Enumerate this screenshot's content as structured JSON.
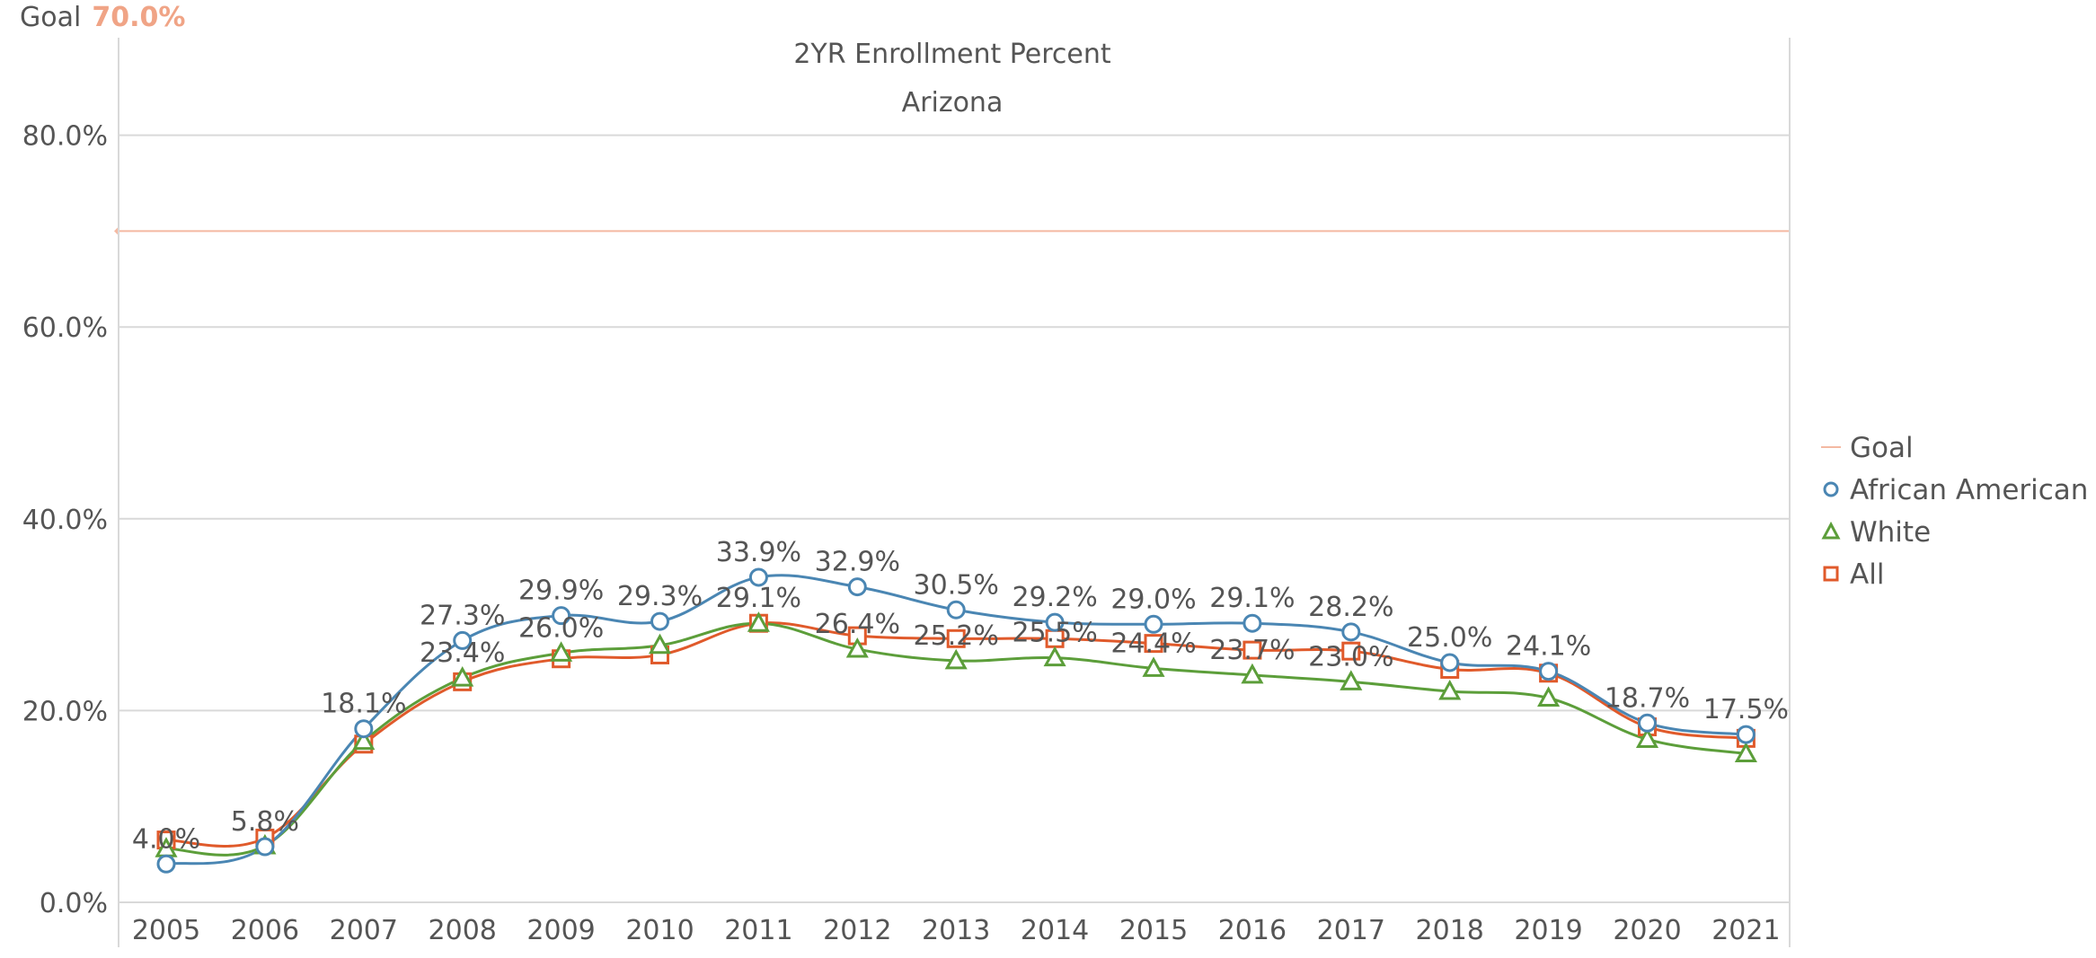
{
  "goal_header": {
    "label": "Goal",
    "value": "70.0%"
  },
  "chart_data": {
    "type": "line",
    "title": "2YR Enrollment Percent",
    "subtitle": "Arizona",
    "categories": [
      "2005",
      "2006",
      "2007",
      "2008",
      "2009",
      "2010",
      "2011",
      "2012",
      "2013",
      "2014",
      "2015",
      "2016",
      "2017",
      "2018",
      "2019",
      "2020",
      "2021"
    ],
    "ylim": [
      0,
      90
    ],
    "yticks": [
      0,
      20,
      40,
      60,
      80
    ],
    "ytick_labels": [
      "0.0%",
      "20.0%",
      "40.0%",
      "60.0%",
      "80.0%"
    ],
    "grid": true,
    "legend_position": "right",
    "goal": {
      "name": "Goal",
      "value": 70.0,
      "color": "#f4b9a2"
    },
    "series": [
      {
        "name": "African American",
        "marker": "circle",
        "color": "#4a86b3",
        "values": [
          4.0,
          5.8,
          18.1,
          27.3,
          29.9,
          29.3,
          33.9,
          32.9,
          30.5,
          29.2,
          29.0,
          29.1,
          28.2,
          25.0,
          24.1,
          18.7,
          17.5
        ],
        "labels": [
          "4.0%",
          "5.8%",
          "18.1%",
          "27.3%",
          "29.9%",
          "29.3%",
          "33.9%",
          "32.9%",
          "30.5%",
          "29.2%",
          "29.0%",
          "29.1%",
          "28.2%",
          "25.0%",
          "24.1%",
          "18.7%",
          "17.5%"
        ]
      },
      {
        "name": "White",
        "marker": "triangle",
        "color": "#5c9e3a",
        "values": [
          5.6,
          5.9,
          16.8,
          23.4,
          26.0,
          26.8,
          29.1,
          26.4,
          25.2,
          25.5,
          24.4,
          23.7,
          23.0,
          22.0,
          21.3,
          17.0,
          15.5
        ],
        "labels": [
          "",
          "",
          "",
          "23.4%",
          "26.0%",
          "",
          "29.1%",
          "26.4%",
          "25.2%",
          "25.5%",
          "24.4%",
          "23.7%",
          "23.0%",
          "",
          "",
          "",
          ""
        ]
      },
      {
        "name": "All",
        "marker": "square",
        "color": "#e05a2b",
        "values": [
          6.5,
          6.7,
          16.5,
          23.0,
          25.4,
          25.8,
          29.1,
          27.8,
          27.5,
          27.5,
          27.0,
          26.3,
          26.2,
          24.3,
          23.9,
          18.3,
          17.1
        ],
        "labels": [
          "",
          "",
          "",
          "",
          "",
          "",
          "",
          "",
          "",
          "",
          "",
          "",
          "",
          "",
          "",
          "",
          ""
        ]
      }
    ]
  }
}
